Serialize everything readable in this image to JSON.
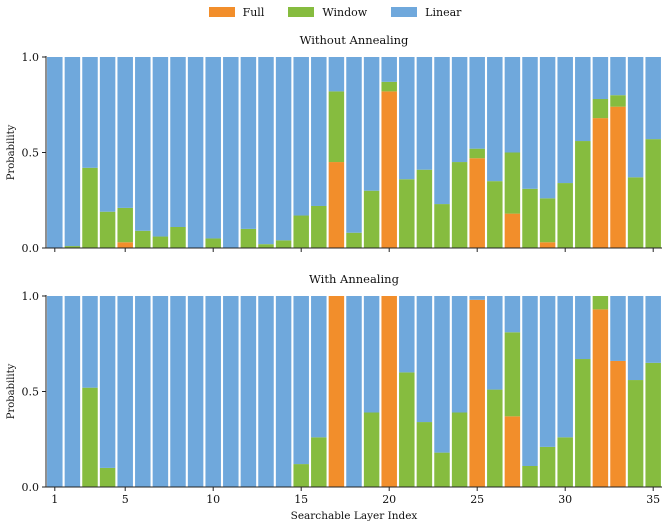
{
  "chart_data": {
    "type": "bar",
    "stacked": true,
    "legend_placement": "top-center",
    "legend": [
      "Full",
      "Window",
      "Linear"
    ],
    "colors": {
      "Full": "#f28e2b",
      "Window": "#86bc3f",
      "Linear": "#6fa8dc"
    },
    "xlabel": "Searchable Layer Index",
    "x_ticks": [
      "1",
      "5",
      "10",
      "15",
      "20",
      "25",
      "30",
      "35"
    ],
    "x": [
      1,
      2,
      3,
      4,
      5,
      6,
      7,
      8,
      9,
      10,
      11,
      12,
      13,
      14,
      15,
      16,
      17,
      18,
      19,
      20,
      21,
      22,
      23,
      24,
      25,
      26,
      27,
      28,
      29,
      30,
      31,
      32,
      33,
      34,
      35
    ],
    "panels": [
      {
        "title": "Without Annealing",
        "ylabel": "Probability",
        "ylim": [
          0,
          1
        ],
        "yticks": [
          "0.0",
          "0.5",
          "1.0"
        ],
        "series": [
          {
            "name": "Full",
            "values": [
              0,
              0,
              0,
              0,
              0.03,
              0,
              0,
              0,
              0,
              0,
              0,
              0,
              0,
              0,
              0,
              0,
              0.45,
              0,
              0,
              0.82,
              0,
              0,
              0,
              0,
              0.47,
              0,
              0.18,
              0,
              0.03,
              0,
              0,
              0.68,
              0.74,
              0,
              0
            ]
          },
          {
            "name": "Window",
            "values": [
              0,
              0.01,
              0.42,
              0.19,
              0.18,
              0.09,
              0.06,
              0.11,
              0,
              0.05,
              0,
              0.1,
              0.02,
              0.04,
              0.17,
              0.22,
              0.37,
              0.08,
              0.3,
              0.05,
              0.36,
              0.41,
              0.23,
              0.45,
              0.05,
              0.35,
              0.32,
              0.31,
              0.23,
              0.34,
              0.56,
              0.1,
              0.06,
              0.37,
              0.57
            ]
          },
          {
            "name": "Linear",
            "values": [
              1,
              0.99,
              0.58,
              0.81,
              0.79,
              0.91,
              0.94,
              0.89,
              1,
              0.95,
              1,
              0.9,
              0.98,
              0.96,
              0.83,
              0.78,
              0.18,
              0.92,
              0.7,
              0.13,
              0.64,
              0.59,
              0.77,
              0.55,
              0.48,
              0.65,
              0.5,
              0.69,
              0.74,
              0.66,
              0.44,
              0.22,
              0.2,
              0.63,
              0.43
            ]
          }
        ]
      },
      {
        "title": "With Annealing",
        "ylabel": "Probability",
        "ylim": [
          0,
          1
        ],
        "yticks": [
          "0.0",
          "0.5",
          "1.0"
        ],
        "series": [
          {
            "name": "Full",
            "values": [
              0,
              0,
              0,
              0,
              0,
              0,
              0,
              0,
              0,
              0,
              0,
              0,
              0,
              0,
              0,
              0,
              1.0,
              0,
              0,
              1.0,
              0,
              0,
              0,
              0,
              0.98,
              0,
              0.37,
              0,
              0,
              0,
              0,
              0.93,
              0.66,
              0,
              0
            ]
          },
          {
            "name": "Window",
            "values": [
              0,
              0,
              0.52,
              0.1,
              0,
              0,
              0,
              0,
              0,
              0,
              0,
              0,
              0,
              0,
              0.12,
              0.26,
              0,
              0,
              0.39,
              0,
              0.6,
              0.34,
              0.18,
              0.39,
              0,
              0.51,
              0.44,
              0.11,
              0.21,
              0.26,
              0.67,
              0.07,
              0,
              0.56,
              0.65
            ]
          },
          {
            "name": "Linear",
            "values": [
              1,
              1,
              0.48,
              0.9,
              1,
              1,
              1,
              1,
              1,
              1,
              1,
              1,
              1,
              1,
              0.88,
              0.74,
              0,
              1,
              0.61,
              0,
              0.4,
              0.66,
              0.82,
              0.61,
              0.02,
              0.49,
              0.19,
              0.89,
              0.79,
              0.74,
              0.33,
              0,
              0.34,
              0.44,
              0.35
            ]
          }
        ]
      }
    ]
  }
}
